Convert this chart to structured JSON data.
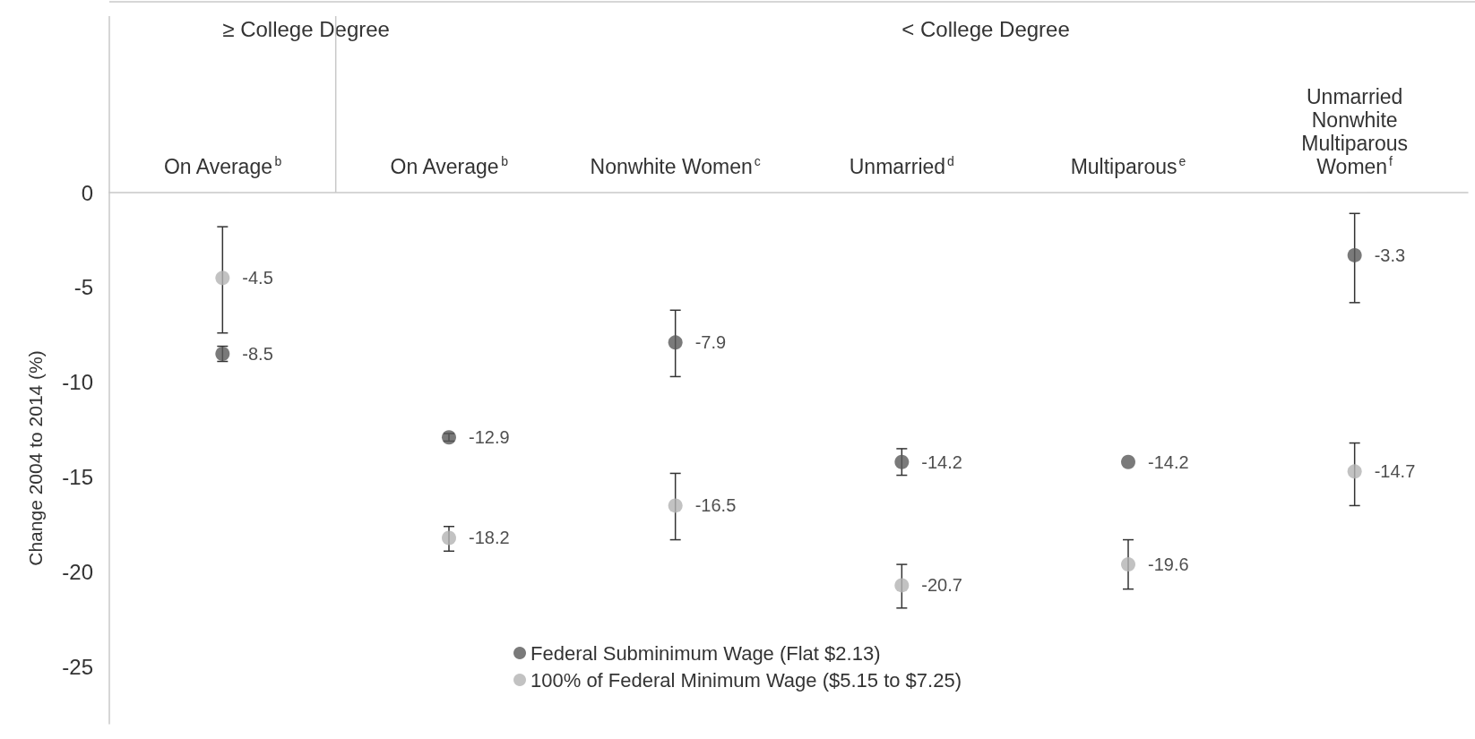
{
  "chart_data": {
    "type": "scatter",
    "ylabel": "Change 2004 to 2014 (%)",
    "categories": [
      "On Average$^{b}$",
      "On Average$^{b}$",
      "Nonwhite Women$^{c}$",
      "Unmarried$^{d}$",
      "Multiparous$^{e}$",
      "Unmarried Nonwhite Multiparous Women$^{f}$"
    ],
    "series": [
      {
        "name": "Federal Subminimum Wage (Flat $2.13)",
        "color": "#595959",
        "values": [
          -8.5,
          -12.9,
          -7.9,
          -14.2,
          -14.2,
          -3.3
        ],
        "errors": [
          [
            -8.9,
            -8.1
          ],
          [
            -13.1,
            -12.7
          ],
          [
            -9.7,
            -6.2
          ],
          [
            -14.9,
            -13.5
          ],
          null,
          [
            -5.8,
            -1.1
          ]
        ]
      },
      {
        "name": "100% of Federal Minimum Wage ($5.15 to $7.25)",
        "color": "#b3b3b3",
        "values": [
          -4.5,
          -18.2,
          -16.5,
          -20.7,
          -19.6,
          -14.7
        ],
        "errors": [
          [
            -7.4,
            -1.8
          ],
          [
            -18.9,
            -17.6
          ],
          [
            -18.3,
            -14.8
          ],
          [
            -21.9,
            -19.6
          ],
          [
            -20.9,
            -18.3
          ],
          [
            -16.5,
            -13.2
          ]
        ]
      }
    ],
    "annotations": [
      "≥ College Degree",
      "< College Degree"
    ],
    "ylim": [
      -28,
      0
    ],
    "yticks": [
      0,
      -5,
      -10,
      -15,
      -20,
      -25
    ],
    "data_labels": true,
    "legend": "bottom",
    "marker": "circle",
    "grid": false
  }
}
